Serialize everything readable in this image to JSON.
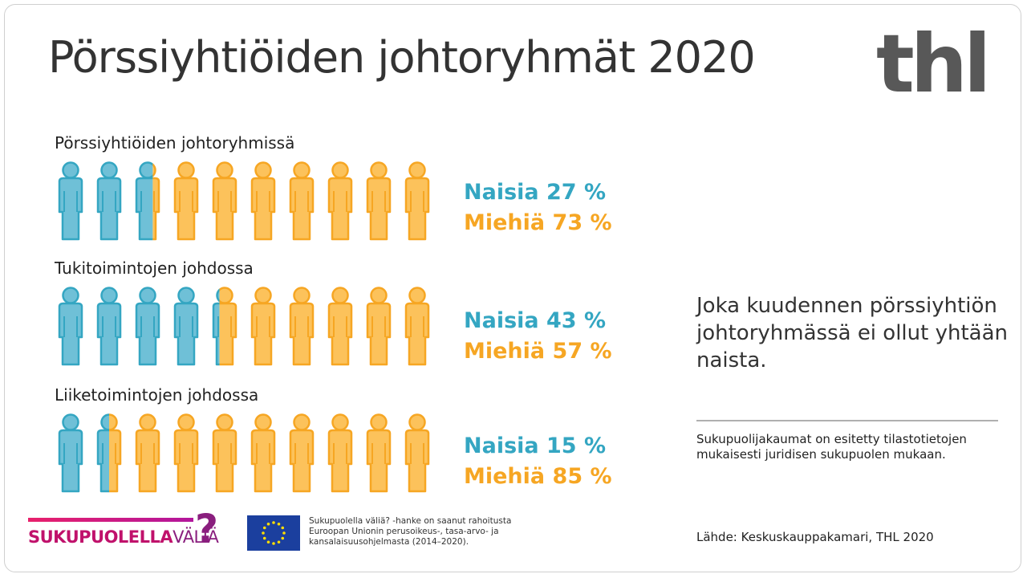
{
  "title": "Pörssiyhtiöiden johtoryhmät 2020",
  "logo_text": "thl",
  "colors": {
    "women": "#34a6c2",
    "men": "#f6a623",
    "women_fill": "#6fc0d7",
    "men_fill": "#fcc25b"
  },
  "sections": [
    {
      "label": "Pörssiyhtiöiden johtoryhmissä",
      "women_label": "Naisia 27 %",
      "men_label": "Miehiä 73 %",
      "women_share": 0.27
    },
    {
      "label": "Tukitoimintojen johdossa",
      "women_label": "Naisia 43 %",
      "men_label": "Miehiä 57 %",
      "women_share": 0.43
    },
    {
      "label": "Liiketoimintojen johdossa",
      "women_label": "Naisia 15 %",
      "men_label": "Miehiä 85 %",
      "women_share": 0.15
    }
  ],
  "callout": "Joka kuudennen pörssiyhtiön johtoryhmässä ei ollut yhtään naista.",
  "note": "Sukupuolijakaumat on esitetty tilastotietojen mukaisesti juridisen sukupuolen mukaan.",
  "source": "Lähde:  Keskuskauppakamari, THL 2020",
  "sukupuolella_logo": {
    "text_bold": "SUKUPUOLELLA",
    "text_light": "VÄLIÄ",
    "mark": "?"
  },
  "eu_funding_text": "Sukupuolella väliä? -hanke on saanut rahoitusta Euroopan Unionin perusoikeus-, tasa-arvo- ja kansalaisuusohjelmasta (2014–2020)."
}
